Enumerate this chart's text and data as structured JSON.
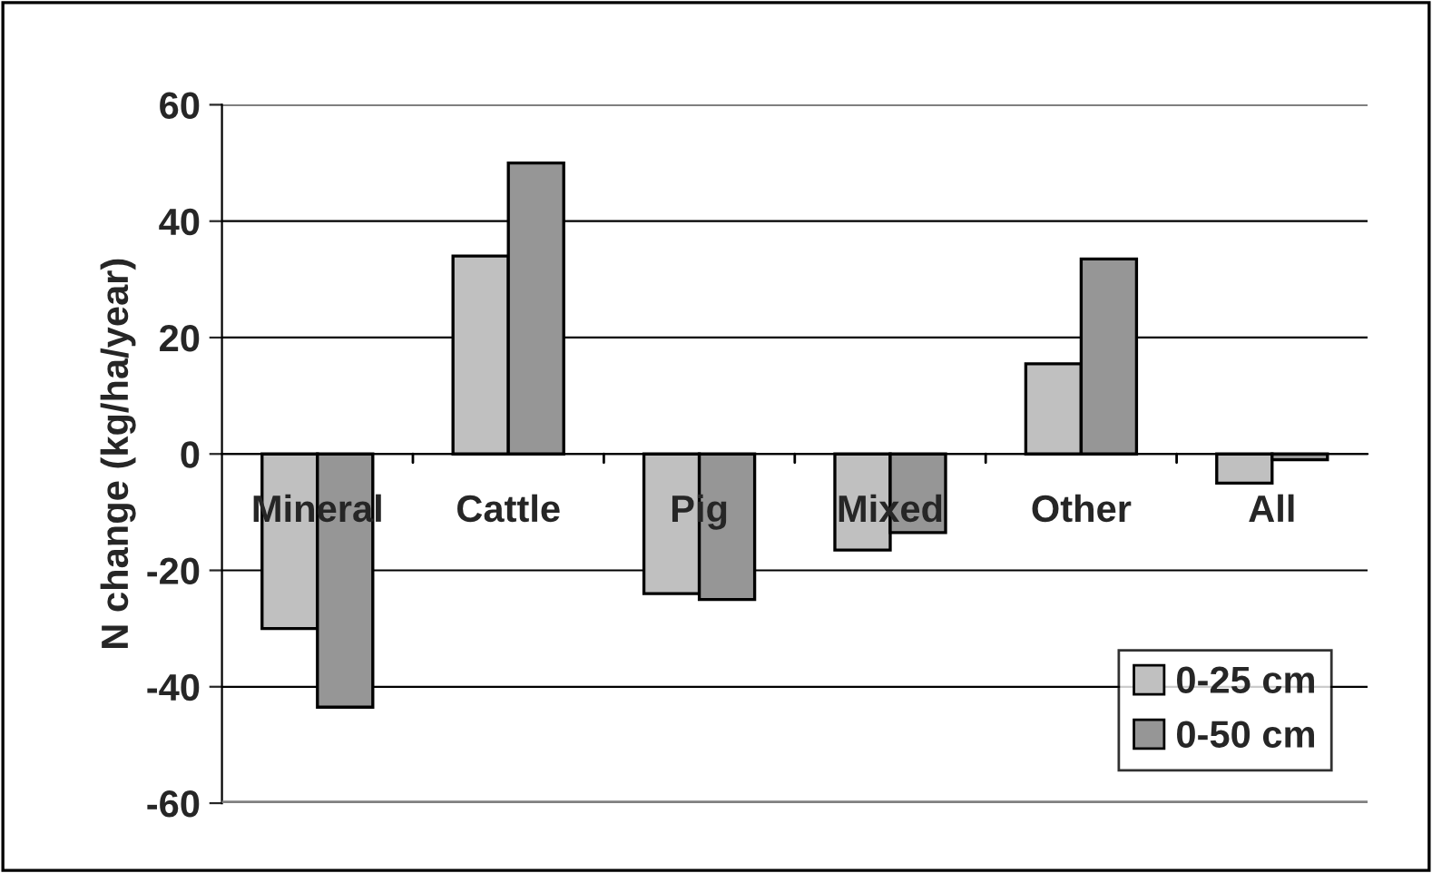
{
  "chart_data": {
    "type": "bar",
    "ylabel": "N change (kg/ha/year)",
    "categories": [
      "Mineral",
      "Cattle",
      "Pig",
      "Mixed",
      "Other",
      "All"
    ],
    "series": [
      {
        "name": "0-25 cm",
        "color": "#c0c0c0",
        "values": [
          -30,
          34,
          -24,
          -16.5,
          15.5,
          -5
        ]
      },
      {
        "name": "0-50 cm",
        "color": "#969696",
        "values": [
          -43.5,
          50,
          -25,
          -13.5,
          33.5,
          -1
        ]
      }
    ],
    "ylim": [
      -60,
      60
    ],
    "yticks": [
      -60,
      -40,
      -20,
      0,
      20,
      40,
      60
    ],
    "grid": "y",
    "legend": "bottom right"
  }
}
